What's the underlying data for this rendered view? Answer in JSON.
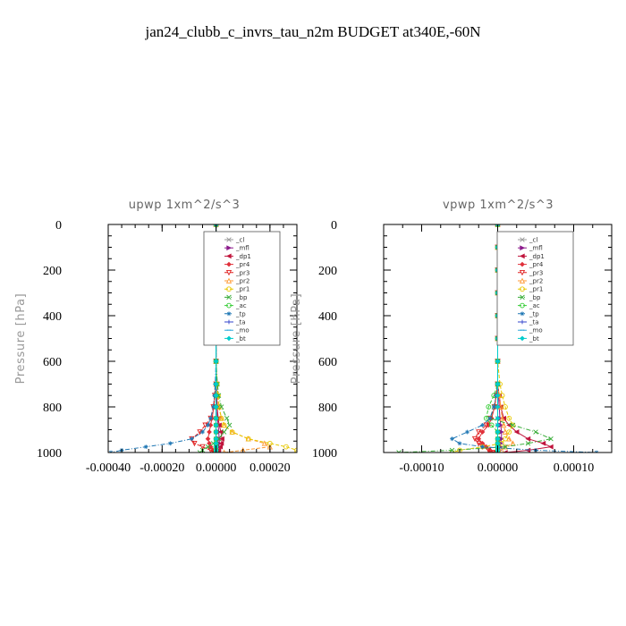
{
  "figure_title": "jan24_clubb_c_invrs_tau_n2m  BUDGET at340E,-60N",
  "chart_data": [
    {
      "type": "line",
      "title": "upwp   1xm^2/s^3",
      "ylabel": "Pressure  [hPa]",
      "xlabel": "",
      "xlim": [
        -0.0004,
        0.0003
      ],
      "ylim": [
        1000,
        0
      ],
      "x_ticks": [
        -0.0004,
        -0.0002,
        0.0,
        0.0002
      ],
      "x_tick_labels": [
        "-0.00040",
        "-0.00020",
        "0.00000",
        "0.00020"
      ],
      "y_ticks": [
        0,
        200,
        400,
        600,
        800,
        1000
      ],
      "y_tick_labels": [
        "0",
        "200",
        "400",
        "600",
        "800",
        "1000"
      ],
      "legend_position": "top-right",
      "pressure_levels": [
        0,
        100,
        200,
        300,
        400,
        500,
        600,
        700,
        750,
        800,
        850,
        880,
        910,
        940,
        960,
        975,
        990,
        1000
      ],
      "series": [
        {
          "name": "_cl",
          "color": "#999999",
          "marker": "x",
          "dash": "none",
          "values": [
            0,
            0,
            0,
            0,
            0,
            0,
            0,
            0,
            0,
            0,
            0,
            0,
            0,
            0,
            0,
            0,
            0,
            0
          ]
        },
        {
          "name": "_mfl",
          "color": "#8b1a8b",
          "marker": "tri-right",
          "dash": "none",
          "values": [
            0,
            0,
            0,
            0,
            0,
            0,
            0,
            2e-06,
            3e-06,
            4e-06,
            5e-06,
            8e-06,
            1e-05,
            1.2e-05,
            1.2e-05,
            1e-05,
            6e-06,
            2e-06
          ]
        },
        {
          "name": "_dp1",
          "color": "#c0143c",
          "marker": "tri-left",
          "dash": "none",
          "values": [
            0,
            0,
            0,
            0,
            0,
            0,
            0,
            0,
            2e-06,
            4e-06,
            8e-06,
            1.2e-05,
            1.8e-05,
            2.2e-05,
            2e-05,
            1.6e-05,
            1e-05,
            4e-06
          ]
        },
        {
          "name": "_pr4",
          "color": "#e0303a",
          "marker": "diamond",
          "dash": "none",
          "values": [
            0,
            0,
            0,
            0,
            0,
            0,
            0,
            0,
            -4e-06,
            -8e-06,
            -1.5e-05,
            -2e-05,
            -2.5e-05,
            -3e-05,
            -2.5e-05,
            -2e-05,
            -1.2e-05,
            -5e-06
          ]
        },
        {
          "name": "_pr3",
          "color": "#e02020",
          "marker": "triangle-down",
          "dash": "dash",
          "values": [
            0,
            0,
            0,
            0,
            0,
            0,
            0,
            0,
            -5e-06,
            -1e-05,
            -2e-05,
            -4e-05,
            -6e-05,
            -9e-05,
            -8e-05,
            -5e-05,
            -2e-05,
            -5e-06
          ]
        },
        {
          "name": "_pr2",
          "color": "#ff9933",
          "marker": "triangle-up",
          "dash": "dash",
          "values": [
            0,
            0,
            0,
            0,
            0,
            0,
            0,
            0,
            5e-06,
            1e-05,
            2e-05,
            3e-05,
            6e-05,
            0.00012,
            0.00018,
            0.0002,
            0.0001,
            3e-05
          ]
        },
        {
          "name": "_pr1",
          "color": "#e8c800",
          "marker": "circle",
          "dash": "dash",
          "values": [
            0,
            0,
            0,
            0,
            0,
            0,
            0,
            4e-06,
            8e-06,
            1.2e-05,
            2e-05,
            3e-05,
            6e-05,
            0.00012,
            0.0002,
            0.00026,
            0.0003,
            0.0003
          ]
        },
        {
          "name": "_bp",
          "color": "#33aa33",
          "marker": "x",
          "dash": "dashdot",
          "values": [
            0,
            0,
            0,
            0,
            0,
            0,
            0,
            5e-06,
            1e-05,
            2e-05,
            4e-05,
            5e-05,
            3e-05,
            1e-05,
            -1e-05,
            -3e-05,
            -5e-05,
            -6e-05
          ]
        },
        {
          "name": "_ac",
          "color": "#33cc33",
          "marker": "circle",
          "dash": "dash",
          "values": [
            0,
            0,
            0,
            0,
            0,
            0,
            0,
            0,
            0,
            0,
            0,
            0,
            0,
            0,
            0,
            0,
            0,
            0
          ]
        },
        {
          "name": "_tp",
          "color": "#1f77b4",
          "marker": "asterisk",
          "dash": "dashdot",
          "values": [
            0,
            0,
            0,
            0,
            0,
            0,
            0,
            -3e-06,
            -6e-06,
            -1e-05,
            -2e-05,
            -3e-05,
            -5e-05,
            -9e-05,
            -0.00017,
            -0.00026,
            -0.00035,
            -0.00039
          ]
        },
        {
          "name": "_ta",
          "color": "#3344cc",
          "marker": "plus",
          "dash": "dash",
          "values": [
            0,
            0,
            0,
            0,
            0,
            0,
            0,
            0,
            0,
            0,
            0,
            0,
            0,
            0,
            0,
            0,
            0,
            0
          ]
        },
        {
          "name": "_mo",
          "color": "#33aadd",
          "marker": "dash",
          "dash": "dash",
          "values": [
            0,
            0,
            0,
            0,
            0,
            0,
            0,
            0,
            0,
            0,
            0,
            0,
            0,
            0,
            0,
            0,
            0,
            0
          ]
        },
        {
          "name": "_bt",
          "color": "#00cccc",
          "marker": "diamond",
          "dash": "none",
          "values": [
            0,
            0,
            0,
            0,
            0,
            0,
            0,
            0,
            0,
            0,
            0,
            0,
            0,
            0,
            0,
            0,
            0,
            0
          ]
        }
      ]
    },
    {
      "type": "line",
      "title": "vpwp   1xm^2/s^3",
      "ylabel": "Pressure  [hPa]",
      "xlabel": "",
      "xlim": [
        -0.00015,
        0.00015
      ],
      "ylim": [
        1000,
        0
      ],
      "x_ticks": [
        -0.0001,
        0.0,
        0.0001
      ],
      "x_tick_labels": [
        "-0.00010",
        "0.00000",
        "0.00010"
      ],
      "y_ticks": [
        0,
        200,
        400,
        600,
        800,
        1000
      ],
      "y_tick_labels": [
        "0",
        "200",
        "400",
        "600",
        "800",
        "1000"
      ],
      "legend_position": "top-right",
      "pressure_levels": [
        0,
        100,
        200,
        300,
        400,
        500,
        600,
        700,
        750,
        800,
        850,
        880,
        910,
        940,
        960,
        975,
        990,
        1000
      ],
      "series": [
        {
          "name": "_cl",
          "color": "#999999",
          "marker": "x",
          "dash": "none",
          "values": [
            0,
            0,
            0,
            0,
            0,
            0,
            0,
            0,
            0,
            0,
            0,
            0,
            0,
            0,
            0,
            0,
            0,
            0
          ]
        },
        {
          "name": "_mfl",
          "color": "#8b1a8b",
          "marker": "tri-right",
          "dash": "none",
          "values": [
            0,
            0,
            0,
            0,
            0,
            0,
            0,
            0,
            1e-06,
            2e-06,
            3e-06,
            4e-06,
            5e-06,
            5e-06,
            4e-06,
            3e-06,
            2e-06,
            1e-06
          ]
        },
        {
          "name": "_dp1",
          "color": "#c0143c",
          "marker": "tri-left",
          "dash": "none",
          "values": [
            0,
            0,
            0,
            0,
            0,
            0,
            0,
            0,
            2e-06,
            4e-06,
            8e-06,
            1.5e-05,
            2.5e-05,
            4e-05,
            6e-05,
            7e-05,
            4e-05,
            1e-05
          ]
        },
        {
          "name": "_pr4",
          "color": "#e0303a",
          "marker": "diamond",
          "dash": "none",
          "values": [
            0,
            0,
            0,
            0,
            0,
            0,
            0,
            0,
            -2e-06,
            -4e-06,
            -8e-06,
            -1.2e-05,
            -2e-05,
            -2.5e-05,
            -2e-05,
            -1.5e-05,
            -1e-05,
            -4e-06
          ]
        },
        {
          "name": "_pr3",
          "color": "#e02020",
          "marker": "triangle-down",
          "dash": "dash",
          "values": [
            0,
            0,
            0,
            0,
            0,
            0,
            0,
            0,
            -2e-06,
            -4e-06,
            -1e-05,
            -1.5e-05,
            -2.5e-05,
            -3e-05,
            -2.5e-05,
            -2e-05,
            -1.2e-05,
            -5e-06
          ]
        },
        {
          "name": "_pr2",
          "color": "#ff9933",
          "marker": "triangle-up",
          "dash": "dash",
          "values": [
            0,
            0,
            0,
            0,
            0,
            0,
            0,
            0,
            2e-06,
            4e-06,
            6e-06,
            8e-06,
            1e-05,
            1.5e-05,
            2e-05,
            1e-05,
            5e-06,
            2e-06
          ]
        },
        {
          "name": "_pr1",
          "color": "#e8c800",
          "marker": "circle",
          "dash": "dash",
          "values": [
            0,
            0,
            0,
            0,
            0,
            0,
            0,
            3e-06,
            6e-06,
            1e-05,
            1.5e-05,
            2e-05,
            1.5e-05,
            1e-05,
            5e-06,
            -2e-05,
            -5e-05,
            -6e-05
          ]
        },
        {
          "name": "_bp",
          "color": "#33aa33",
          "marker": "x",
          "dash": "dashdot",
          "values": [
            0,
            0,
            0,
            0,
            0,
            0,
            0,
            0,
            -2e-06,
            -5e-06,
            -1e-05,
            2e-05,
            5e-05,
            7e-05,
            4e-05,
            1e-05,
            -6e-05,
            -0.00013
          ]
        },
        {
          "name": "_ac",
          "color": "#33cc33",
          "marker": "circle",
          "dash": "dash",
          "values": [
            0,
            0,
            0,
            0,
            0,
            0,
            0,
            0,
            -5e-06,
            -1.2e-05,
            -1.5e-05,
            -8e-06,
            0,
            0,
            0,
            0,
            0,
            0
          ]
        },
        {
          "name": "_tp",
          "color": "#1f77b4",
          "marker": "asterisk",
          "dash": "dashdot",
          "values": [
            0,
            0,
            0,
            0,
            0,
            0,
            0,
            0,
            -2e-06,
            -5e-06,
            -1e-05,
            -2e-05,
            -4e-05,
            -6e-05,
            -5e-05,
            -2e-05,
            5e-05,
            0.00013
          ]
        },
        {
          "name": "_ta",
          "color": "#3344cc",
          "marker": "plus",
          "dash": "dash",
          "values": [
            0,
            0,
            0,
            0,
            0,
            0,
            0,
            0,
            0,
            0,
            0,
            0,
            0,
            0,
            0,
            0,
            0,
            0
          ]
        },
        {
          "name": "_mo",
          "color": "#33aadd",
          "marker": "dash",
          "dash": "dash",
          "values": [
            0,
            0,
            0,
            0,
            0,
            0,
            0,
            0,
            0,
            0,
            0,
            0,
            0,
            0,
            0,
            0,
            0,
            0
          ]
        },
        {
          "name": "_bt",
          "color": "#00cccc",
          "marker": "diamond",
          "dash": "none",
          "values": [
            0,
            0,
            0,
            0,
            0,
            0,
            0,
            0,
            0,
            0,
            0,
            0,
            0,
            0,
            0,
            0,
            0,
            0
          ]
        }
      ]
    }
  ]
}
